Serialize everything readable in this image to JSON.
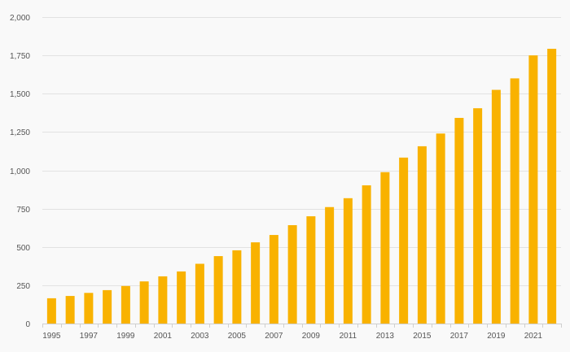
{
  "chart_data": {
    "type": "bar",
    "title": "",
    "xlabel": "",
    "ylabel": "",
    "categories": [
      "1995",
      "1996",
      "1997",
      "1998",
      "1999",
      "2000",
      "2001",
      "2002",
      "2003",
      "2004",
      "2005",
      "2006",
      "2007",
      "2008",
      "2009",
      "2010",
      "2011",
      "2012",
      "2013",
      "2014",
      "2015",
      "2016",
      "2017",
      "2018",
      "2019",
      "2020",
      "2021",
      "2022"
    ],
    "values": [
      165,
      180,
      200,
      218,
      245,
      275,
      308,
      340,
      390,
      440,
      478,
      530,
      578,
      642,
      700,
      760,
      818,
      902,
      988,
      1083,
      1157,
      1240,
      1342,
      1405,
      1525,
      1600,
      1750,
      1793
    ],
    "x_tick_labels": [
      "1995",
      "1997",
      "1999",
      "2001",
      "2003",
      "2005",
      "2007",
      "2009",
      "2011",
      "2013",
      "2015",
      "2017",
      "2019",
      "2021"
    ],
    "y_ticks": [
      0,
      250,
      500,
      750,
      1000,
      1250,
      1500,
      1750,
      2000
    ],
    "y_tick_labels": [
      "0",
      "250",
      "500",
      "750",
      "1,000",
      "1,250",
      "1,500",
      "1,750",
      "2,000"
    ],
    "ylim": [
      0,
      2000
    ],
    "grid": true,
    "legend": "none",
    "bar_color": "#f9b200"
  }
}
